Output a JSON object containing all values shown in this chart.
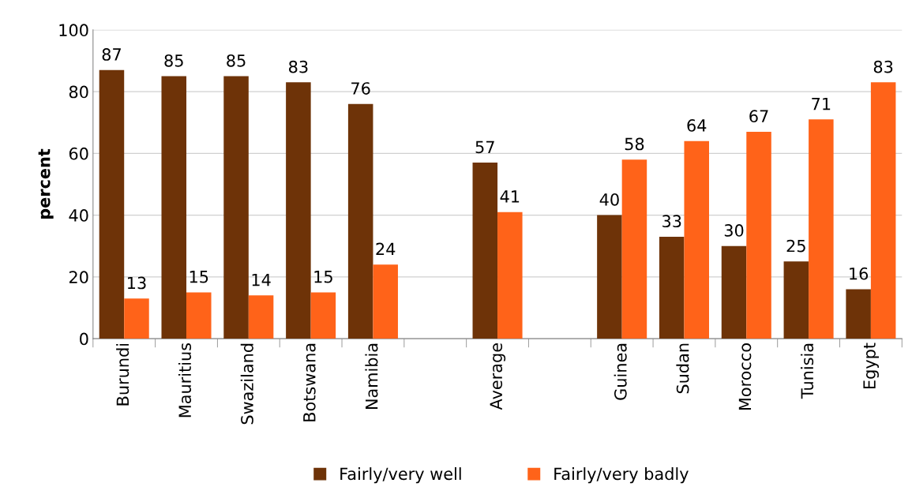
{
  "chart_data": {
    "type": "bar",
    "ylabel": "percent",
    "categories": [
      "Burundi",
      "Mauritius",
      "Swaziland",
      "Botswana",
      "Namibia",
      null,
      "Average",
      null,
      "Guinea",
      "Sudan",
      "Morocco",
      "Tunisia",
      "Egypt"
    ],
    "series": [
      {
        "name": "Fairly/very well",
        "color": "#6e3308",
        "values": [
          87,
          85,
          85,
          83,
          76,
          null,
          57,
          null,
          40,
          33,
          30,
          25,
          16
        ]
      },
      {
        "name": "Fairly/very badly",
        "color": "#ff6319",
        "values": [
          13,
          15,
          14,
          15,
          24,
          null,
          41,
          null,
          58,
          64,
          67,
          71,
          83
        ]
      }
    ],
    "ylim": [
      0,
      100
    ],
    "yticks": [
      0,
      20,
      40,
      60,
      80,
      100
    ],
    "grid": "y",
    "legend": "bottom",
    "data_labels": true
  }
}
